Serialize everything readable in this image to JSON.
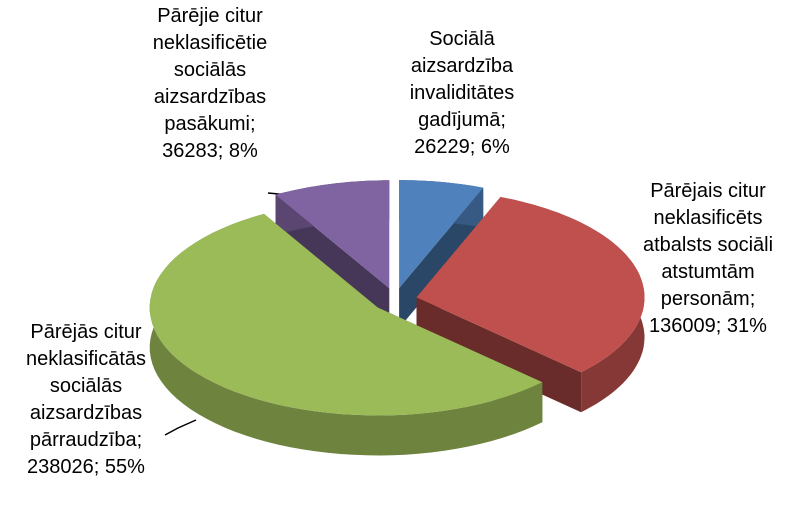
{
  "chart_data": {
    "type": "pie3d",
    "categories": [
      "Sociālā aizsardzība invaliditātes gadījumā",
      "Pārējais citur neklasificēts atbalsts sociāli atstumtām personām",
      "Pārējās citur neklasificātās sociālās aizsardzības pārraudzība",
      "Pārējie citur neklasificētie sociālās aizsardzības pasākumi"
    ],
    "values": [
      26229,
      136009,
      238026,
      36283
    ],
    "value_labels": [
      "26229; 6%",
      "136009; 31%",
      "238026; 55%",
      "36283; 8%"
    ],
    "colors": [
      "#4f81bd",
      "#c0504d",
      "#9bbb59",
      "#8064a2"
    ]
  }
}
